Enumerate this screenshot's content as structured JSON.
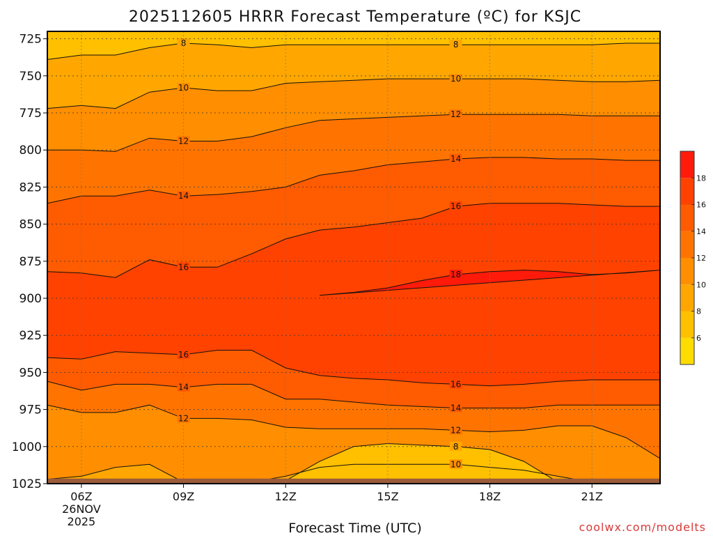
{
  "chart_data": {
    "type": "heatmap",
    "title": "2025112605 HRRR Forecast Temperature (ºC) for KSJC",
    "xlabel": "Forecast Time (UTC)",
    "ylabel": "",
    "credit": "coolwx.com/modelts",
    "x_tick_labels": [
      "06Z",
      "09Z",
      "12Z",
      "15Z",
      "18Z",
      "21Z"
    ],
    "x_tick_hours": [
      6,
      9,
      12,
      15,
      18,
      21
    ],
    "x_date_label": [
      "26NOV",
      "2025"
    ],
    "xlim": [
      5,
      23
    ],
    "y_ticks": [
      725,
      750,
      775,
      800,
      825,
      850,
      875,
      900,
      925,
      950,
      975,
      1000,
      1025
    ],
    "ylim": [
      1025,
      720
    ],
    "colorbar": {
      "levels": [
        4,
        6,
        8,
        10,
        12,
        14,
        16,
        18,
        20
      ],
      "tick_labels": [
        "6",
        "8",
        "10",
        "12",
        "14",
        "16",
        "18"
      ],
      "colors": [
        "#ffdc00",
        "#ffc000",
        "#ffa700",
        "#ff8e00",
        "#ff7400",
        "#ff5b00",
        "#ff4200",
        "#ff1a0a"
      ]
    },
    "ground_color": "#9a5b3a",
    "x_hours": [
      5,
      6,
      7,
      8,
      9,
      10,
      11,
      12,
      13,
      14,
      15,
      16,
      17,
      18,
      19,
      20,
      21,
      22,
      23
    ],
    "contours": [
      {
        "value": 8,
        "pressure": [
          739,
          736,
          736,
          731,
          728,
          729,
          731,
          729,
          729,
          729,
          729,
          729,
          729,
          729,
          729,
          729,
          729,
          728,
          728
        ]
      },
      {
        "value": 10,
        "pressure": [
          772,
          770,
          772,
          761,
          758,
          760,
          760,
          755,
          754,
          753,
          752,
          752,
          752,
          752,
          752,
          753,
          754,
          754,
          753
        ]
      },
      {
        "value": 12,
        "pressure": [
          800,
          800,
          801,
          792,
          794,
          794,
          791,
          785,
          780,
          779,
          778,
          777,
          776,
          776,
          776,
          776,
          777,
          777,
          777
        ]
      },
      {
        "value": 14,
        "pressure": [
          836,
          831,
          831,
          827,
          831,
          830,
          828,
          825,
          817,
          814,
          810,
          808,
          806,
          805,
          805,
          806,
          806,
          807,
          807
        ]
      },
      {
        "value": 16,
        "pressure": [
          882,
          883,
          886,
          874,
          879,
          879,
          870,
          860,
          854,
          852,
          849,
          846,
          838,
          836,
          836,
          836,
          837,
          838,
          838
        ]
      },
      {
        "value": 18,
        "pressure": [
          null,
          null,
          null,
          null,
          null,
          null,
          null,
          null,
          898,
          896,
          893,
          888,
          884,
          882,
          881,
          882,
          884,
          883,
          881
        ]
      },
      {
        "value": 16,
        "pressure": [
          940,
          941,
          936,
          937,
          938,
          935,
          935,
          947,
          952,
          954,
          955,
          957,
          958,
          959,
          958,
          956,
          955,
          955,
          955
        ]
      },
      {
        "value": 14,
        "pressure": [
          956,
          962,
          958,
          958,
          960,
          958,
          958,
          968,
          968,
          970,
          972,
          973,
          974,
          974,
          974,
          972,
          972,
          972,
          972
        ]
      },
      {
        "value": 12,
        "pressure": [
          972,
          977,
          977,
          972,
          981,
          981,
          982,
          987,
          988,
          988,
          988,
          988,
          989,
          990,
          989,
          986,
          986,
          994,
          1008
        ]
      },
      {
        "value": 10,
        "pressure": [
          1022,
          1020,
          1014,
          1012,
          1024,
          1024,
          1024,
          1020,
          1014,
          1012,
          1012,
          1012,
          1012,
          1014,
          1016,
          1020,
          1024,
          1024,
          1025
        ]
      },
      {
        "value": 8,
        "pressure": [
          null,
          null,
          null,
          null,
          null,
          null,
          null,
          1023,
          1010,
          1000,
          998,
          999,
          1000,
          1002,
          1010,
          1024,
          null,
          null,
          null
        ]
      }
    ]
  }
}
